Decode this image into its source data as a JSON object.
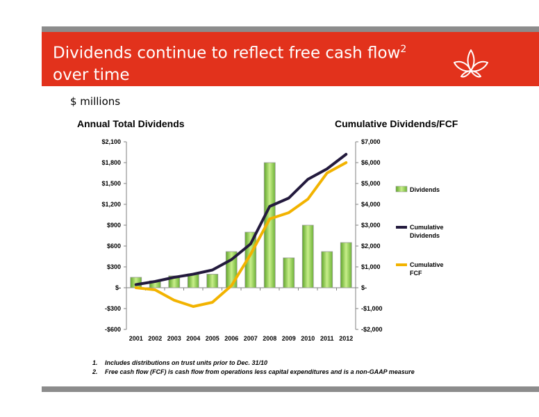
{
  "header": {
    "title_line1": "Dividends continue to reflect free cash flow",
    "title_sup": "2",
    "title_line2": "over time"
  },
  "subtitle": "$ millions",
  "left_title": "Annual Total Dividends",
  "right_title": "Cumulative Dividends/FCF",
  "footnotes": [
    {
      "num": "1.",
      "text": "Includes distributions on trust units prior to Dec. 31/10"
    },
    {
      "num": "2.",
      "text": "Free cash flow (FCF) is cash flow from operations less capital expenditures and is a non-GAAP measure"
    }
  ],
  "colors": {
    "banner": "#e2321c",
    "bar": "#8ccf3f",
    "cumulative_dividends": "#231a3d",
    "cumulative_fcf": "#f2b300"
  },
  "chart_data": {
    "type": "bar",
    "categories": [
      "2001",
      "2002",
      "2003",
      "2004",
      "2005",
      "2006",
      "2007",
      "2008",
      "2009",
      "2010",
      "2011",
      "2012"
    ],
    "y_left": {
      "ylim": [
        -600,
        2100
      ],
      "ticks": [
        -600,
        -300,
        0,
        300,
        600,
        900,
        1200,
        1500,
        1800,
        2100
      ],
      "tick_labels": [
        "-$600",
        "-$300",
        "$-",
        "$300",
        "$600",
        "$900",
        "$1,200",
        "$1,500",
        "$1,800",
        "$2,100"
      ]
    },
    "y_right": {
      "ylim": [
        -2000,
        7000
      ],
      "ticks": [
        -2000,
        -1000,
        0,
        1000,
        2000,
        3000,
        4000,
        5000,
        6000,
        7000
      ],
      "tick_labels": [
        "-$2,000",
        "-$1,000",
        "$-",
        "$1,000",
        "$2,000",
        "$3,000",
        "$4,000",
        "$5,000",
        "$6,000",
        "$7,000"
      ]
    },
    "series": [
      {
        "name": "Dividends",
        "type": "bar",
        "axis": "left",
        "values": [
          150,
          100,
          170,
          200,
          195,
          520,
          800,
          1800,
          430,
          900,
          520,
          650
        ]
      },
      {
        "name": "Cumulative Dividends",
        "legend_lines": [
          "Cumulative",
          "Dividends"
        ],
        "type": "line",
        "axis": "right",
        "values": [
          150,
          300,
          500,
          650,
          850,
          1350,
          2100,
          3900,
          4300,
          5200,
          5700,
          6400
        ]
      },
      {
        "name": "Cumulative FCF",
        "legend_lines": [
          "Cumulative",
          "FCF"
        ],
        "type": "line",
        "axis": "right",
        "values": [
          0,
          -100,
          -600,
          -900,
          -700,
          100,
          1600,
          3300,
          3600,
          4250,
          5500,
          6000
        ]
      }
    ],
    "grid": false,
    "legend": "right"
  }
}
